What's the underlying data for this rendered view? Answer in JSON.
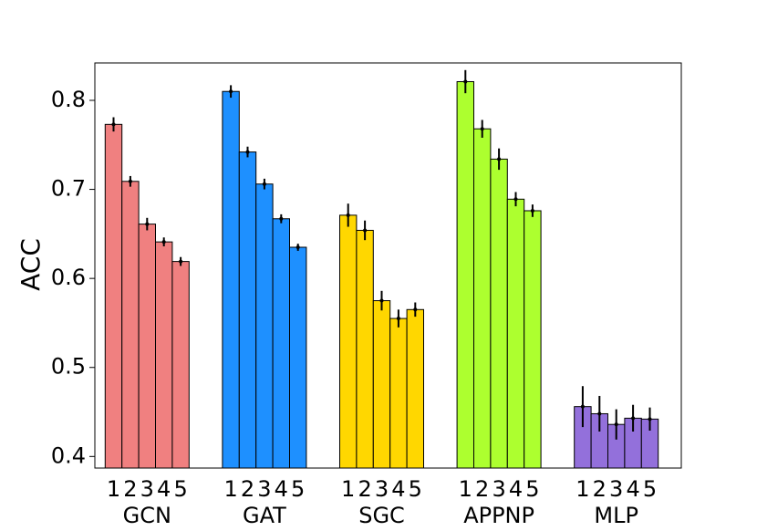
{
  "chart_data": {
    "type": "bar",
    "ylabel": "ACC",
    "categories": [
      "1",
      "2",
      "3",
      "4",
      "5"
    ],
    "series": [
      {
        "name": "GCN",
        "color": "#f08080",
        "values": [
          0.773,
          0.709,
          0.661,
          0.641,
          0.619
        ],
        "errors": [
          0.008,
          0.006,
          0.007,
          0.005,
          0.005
        ]
      },
      {
        "name": "GAT",
        "color": "#1e90ff",
        "values": [
          0.81,
          0.742,
          0.706,
          0.667,
          0.635
        ],
        "errors": [
          0.007,
          0.006,
          0.006,
          0.005,
          0.004
        ]
      },
      {
        "name": "SGC",
        "color": "#ffd700",
        "values": [
          0.671,
          0.654,
          0.575,
          0.555,
          0.565
        ],
        "errors": [
          0.013,
          0.011,
          0.011,
          0.01,
          0.008
        ]
      },
      {
        "name": "APPNP",
        "color": "#adff2f",
        "values": [
          0.821,
          0.768,
          0.734,
          0.689,
          0.676
        ],
        "errors": [
          0.013,
          0.01,
          0.012,
          0.008,
          0.007
        ]
      },
      {
        "name": "MLP",
        "color": "#9370db",
        "values": [
          0.456,
          0.448,
          0.436,
          0.443,
          0.442
        ],
        "errors": [
          0.023,
          0.02,
          0.017,
          0.015,
          0.013
        ]
      }
    ],
    "ylim": [
      0.387,
      0.842
    ],
    "yticks": [
      0.4,
      0.5,
      0.6,
      0.7,
      0.8
    ]
  }
}
